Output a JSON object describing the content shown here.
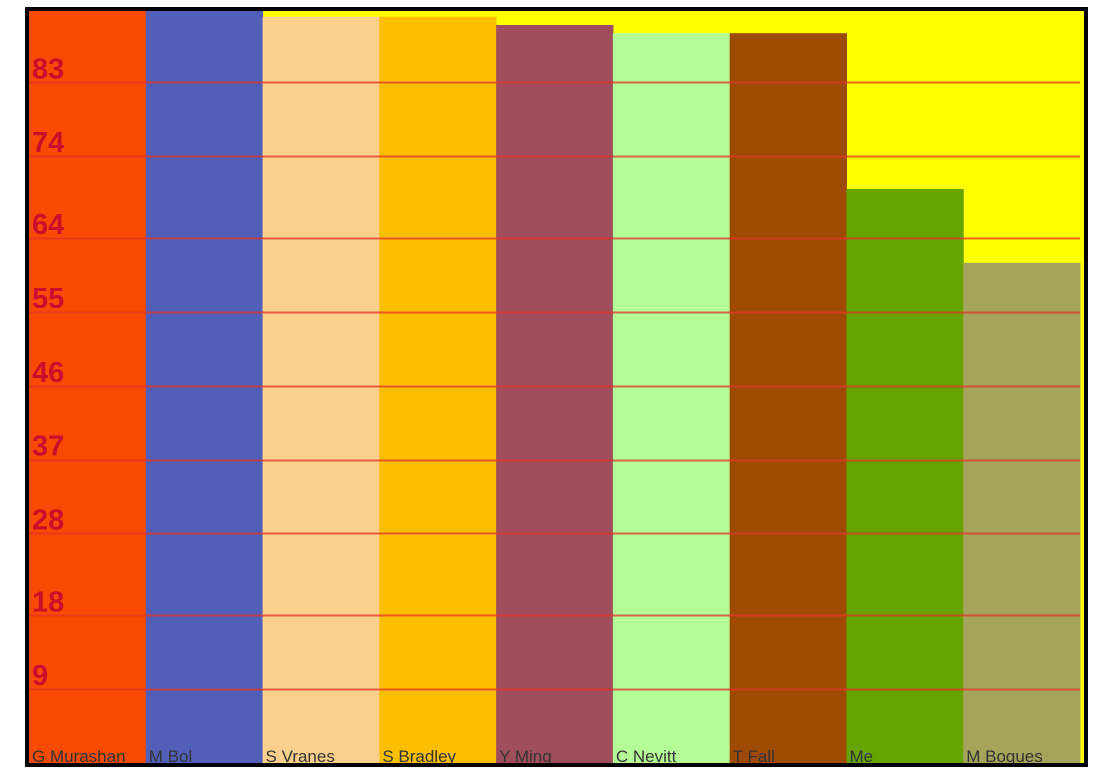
{
  "chart_data": {
    "type": "bar",
    "title": "",
    "xlabel": "",
    "ylabel": "",
    "categories": [
      "G Murashan",
      "M Bol",
      "S Vranes",
      "S Bradley",
      "Y Ming",
      "C Nevitt",
      "T Fall",
      "Me",
      "M Bogues"
    ],
    "values": [
      92,
      92,
      91,
      91,
      90,
      89,
      89,
      70,
      61
    ],
    "bar_colors": [
      "#f84b00",
      "#515fb8",
      "#fbcf8c",
      "#fbbf00",
      "#a04e5b",
      "#b5fe97",
      "#9e4a00",
      "#66a400",
      "#a4a45b"
    ],
    "y_ticks": [
      "9",
      "18",
      "28",
      "37",
      "46",
      "55",
      "64",
      "74",
      "83"
    ],
    "ylim": [
      0,
      92
    ],
    "grid": true,
    "colors": {
      "background": "#ffff00",
      "frame_border": "#000000",
      "gridline": "#e4342a",
      "tick_label": "#c8102e",
      "category_label": "#333333"
    }
  }
}
